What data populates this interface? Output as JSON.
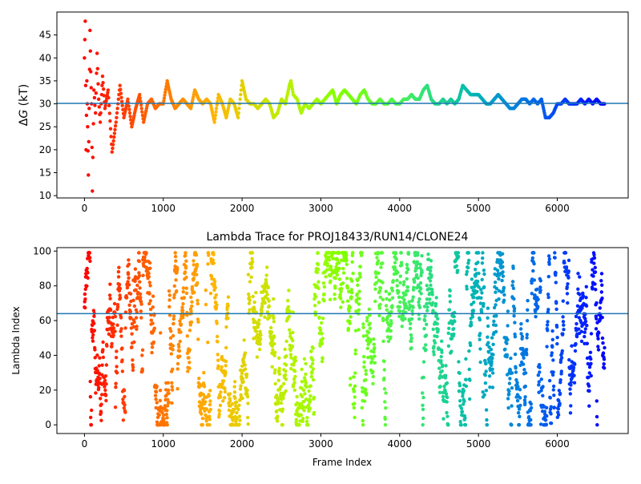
{
  "chart_data": [
    {
      "type": "scatter",
      "title": "",
      "xlabel": "",
      "ylabel": "ΔG (kT)",
      "ylabel_prefix": "Δ",
      "ylabel_var": "G",
      "ylabel_unit": " (kT)",
      "xlim": [
        -350,
        6900
      ],
      "ylim": [
        9.5,
        50
      ],
      "xticks": [
        0,
        1000,
        2000,
        3000,
        4000,
        5000,
        6000
      ],
      "yticks": [
        10,
        15,
        20,
        25,
        30,
        35,
        40,
        45
      ],
      "hline": 30.1,
      "hline_color": "#1f77b4",
      "colormap": "rainbow (reversed in frame order: red at 0 → violet at 6600)",
      "grid": false,
      "legend": "none",
      "series": [
        {
          "x": [
            0,
            10,
            20,
            30,
            40,
            50,
            60,
            70,
            80,
            90,
            100,
            120,
            140,
            160,
            180,
            200,
            230,
            260,
            300,
            350,
            400,
            450,
            500,
            550,
            600,
            650,
            700,
            750,
            800,
            850,
            900,
            950,
            1000,
            1050,
            1100,
            1150,
            1200,
            1250,
            1300,
            1350,
            1400,
            1450,
            1500,
            1550,
            1600,
            1650,
            1700,
            1750,
            1800,
            1850,
            1900,
            1950,
            2000,
            2050,
            2100,
            2150,
            2200,
            2250,
            2300,
            2350,
            2400,
            2450,
            2500,
            2550,
            2600,
            2620,
            2650,
            2700,
            2750,
            2800,
            2850,
            2900,
            2950,
            3000,
            3050,
            3100,
            3150,
            3200,
            3250,
            3300,
            3350,
            3400,
            3450,
            3500,
            3550,
            3600,
            3650,
            3700,
            3750,
            3800,
            3850,
            3900,
            3950,
            4000,
            4050,
            4100,
            4150,
            4200,
            4250,
            4300,
            4350,
            4400,
            4450,
            4500,
            4550,
            4600,
            4650,
            4700,
            4750,
            4800,
            4850,
            4900,
            4950,
            5000,
            5050,
            5100,
            5150,
            5200,
            5250,
            5300,
            5350,
            5400,
            5450,
            5500,
            5550,
            5600,
            5650,
            5700,
            5750,
            5800,
            5850,
            5900,
            5950,
            6000,
            6050,
            6100,
            6150,
            6200,
            6250,
            6300,
            6350,
            6400,
            6450,
            6500,
            6550,
            6600
          ],
          "y": [
            40,
            48,
            20,
            35,
            25,
            14.5,
            29,
            46,
            37,
            30,
            11,
            33,
            28,
            41,
            31,
            26,
            36,
            29,
            33,
            19.5,
            26,
            34,
            27,
            31,
            25,
            29,
            32,
            26,
            30,
            31,
            29,
            30,
            30,
            35,
            31,
            29,
            30,
            31,
            30,
            29,
            33,
            31,
            30,
            31,
            30,
            26,
            32,
            30,
            27,
            31,
            30,
            27,
            35,
            31,
            30,
            30,
            29,
            30,
            31,
            30,
            27,
            28,
            31,
            30,
            34,
            35,
            32,
            31,
            28,
            30,
            29,
            30,
            31,
            30,
            31,
            32,
            33,
            30,
            32,
            33,
            32,
            31,
            30,
            32,
            33,
            31,
            30,
            30,
            31,
            30,
            30,
            31,
            30,
            30,
            31,
            31,
            32,
            31,
            31,
            33,
            34,
            31,
            30,
            30,
            31,
            30,
            31,
            30,
            31,
            34,
            33,
            32,
            32,
            32,
            31,
            30,
            30,
            31,
            32,
            31,
            30,
            29,
            29,
            30,
            31,
            31,
            30,
            31,
            30,
            31,
            27,
            27,
            28,
            30,
            30,
            31,
            30,
            30,
            30,
            31,
            30,
            31,
            30,
            31,
            30,
            30
          ]
        }
      ]
    },
    {
      "type": "scatter",
      "title": "Lambda Trace for PROJ18433/RUN14/CLONE24",
      "xlabel": "Frame Index",
      "ylabel": "Lambda Index",
      "xlim": [
        -350,
        6900
      ],
      "ylim": [
        -5,
        102
      ],
      "xticks": [
        0,
        1000,
        2000,
        3000,
        4000,
        5000,
        6000
      ],
      "yticks": [
        0,
        20,
        40,
        60,
        80,
        100
      ],
      "hline": 64,
      "hline_color": "#1f77b4",
      "colormap": "rainbow (reversed in frame order: red at 0 → violet at 6600)",
      "grid": false,
      "legend": "none",
      "series": [
        {
          "x_range": [
            0,
            6600
          ],
          "y_range": [
            0,
            99
          ],
          "point_count": 2600,
          "note": "dense random walk of lambda index across all frames"
        }
      ]
    }
  ]
}
